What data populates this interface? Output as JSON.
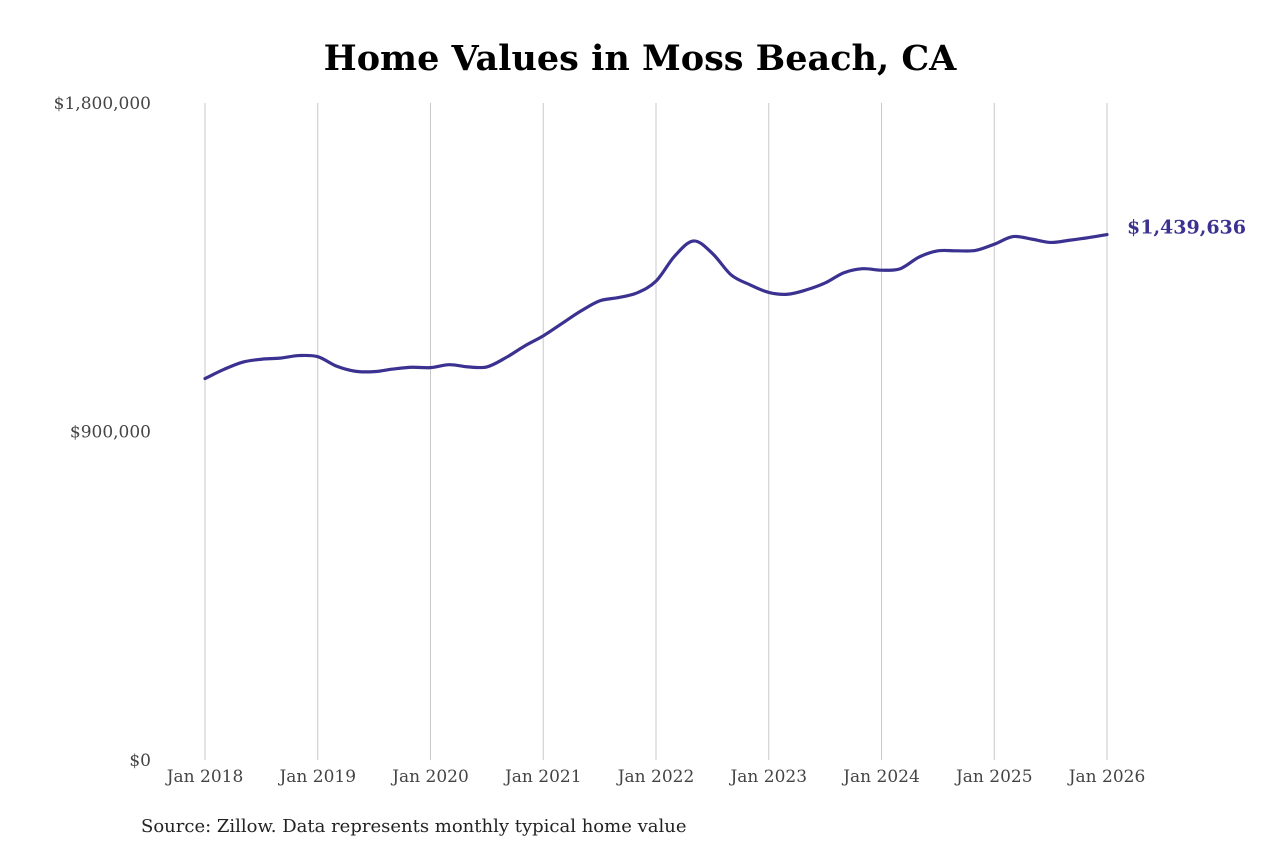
{
  "chart_data": {
    "type": "line",
    "title": "Home Values in Moss Beach, CA",
    "xlabel": "",
    "ylabel": "",
    "x_tick_labels": [
      "Jan 2018",
      "Jan 2019",
      "Jan 2020",
      "Jan 2021",
      "Jan 2022",
      "Jan 2023",
      "Jan 2024",
      "Jan 2025",
      "Jan 2026"
    ],
    "y_tick_labels": [
      "$0",
      "$900,000",
      "$1,800,000"
    ],
    "y_ticks": [
      0,
      900000,
      1800000
    ],
    "ylim": [
      0,
      1800000
    ],
    "xlim": [
      "2018-01",
      "2026-01"
    ],
    "grid": "vertical",
    "end_label": "$1,439,636",
    "series_color": "#3a3190",
    "series": [
      {
        "x": [
          "2018-01",
          "2018-03",
          "2018-05",
          "2018-07",
          "2018-09",
          "2018-11",
          "2019-01",
          "2019-03",
          "2019-05",
          "2019-07",
          "2019-09",
          "2019-11",
          "2020-01",
          "2020-03",
          "2020-05",
          "2020-07",
          "2020-09",
          "2020-11",
          "2021-01",
          "2021-03",
          "2021-05",
          "2021-07",
          "2021-09",
          "2021-11",
          "2022-01",
          "2022-03",
          "2022-05",
          "2022-07",
          "2022-09",
          "2022-11",
          "2023-01",
          "2023-03",
          "2023-05",
          "2023-07",
          "2023-09",
          "2023-11",
          "2024-01",
          "2024-03",
          "2024-05",
          "2024-07",
          "2024-09",
          "2024-11",
          "2025-01",
          "2025-03",
          "2025-05",
          "2025-07",
          "2025-09",
          "2025-11",
          "2026-01"
        ],
        "values": [
          1045000,
          1070000,
          1090000,
          1098000,
          1101000,
          1108000,
          1105000,
          1079000,
          1065000,
          1064000,
          1071000,
          1076000,
          1075000,
          1083000,
          1077000,
          1077000,
          1102000,
          1134000,
          1162000,
          1196000,
          1230000,
          1258000,
          1267000,
          1280000,
          1312000,
          1381000,
          1422000,
          1388000,
          1329000,
          1302000,
          1281000,
          1276000,
          1288000,
          1307000,
          1335000,
          1346000,
          1342000,
          1346000,
          1378000,
          1395000,
          1395000,
          1396000,
          1413000,
          1434000,
          1427000,
          1418000,
          1424000,
          1431000,
          1439636
        ]
      }
    ]
  },
  "source_note": "Source: Zillow. Data represents monthly typical home value"
}
